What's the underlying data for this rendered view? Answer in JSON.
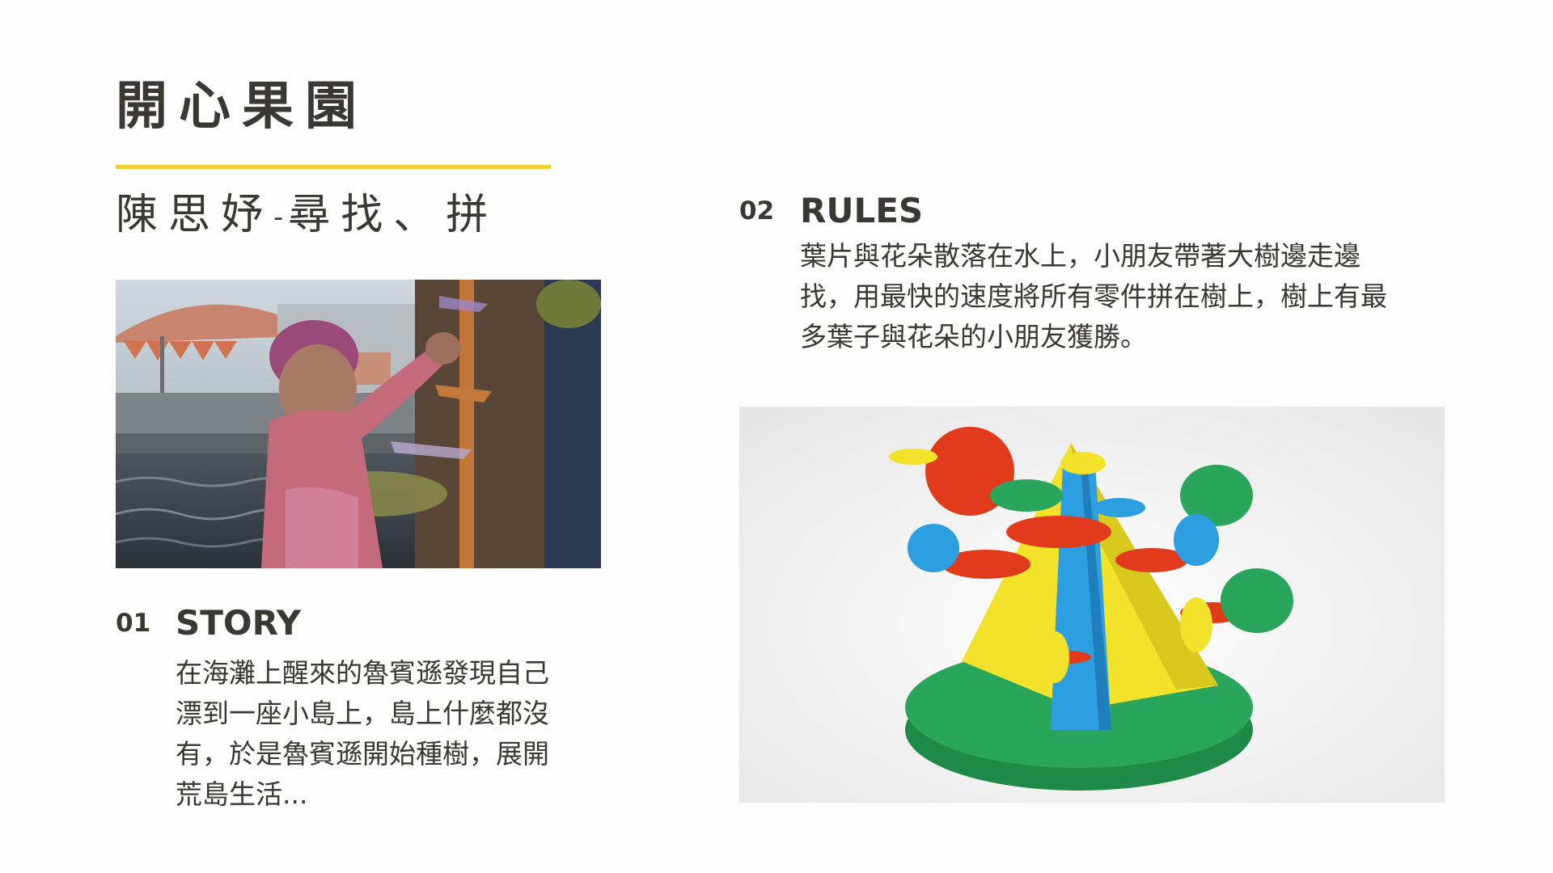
{
  "title": "開心果園",
  "subtitle": {
    "name": "陳思妤",
    "separator": "-",
    "activity": "尋找、拼"
  },
  "story": {
    "number": "01",
    "heading": "STORY",
    "lines": [
      "在海灘上醒來的魯賓遜發現自己",
      "漂到一座小島上，島上什麼都沒",
      "有，於是魯賓遜開始種樹，展開",
      "荒島生活..."
    ]
  },
  "rules": {
    "number": "02",
    "heading": "RULES",
    "lines": [
      "葉片與花朵散落在水上，小朋友帶著大樹邊走邊",
      "找，用最快的速度將所有零件拼在樹上，樹上有最",
      "多葉子與花朵的小朋友獲勝。"
    ]
  },
  "colors": {
    "accent_underline": "#f0cf2e",
    "text": "#3a3833",
    "tree_yellow": "#f2e22a",
    "tree_blue": "#2d9ee0",
    "tree_red": "#e23b1c",
    "tree_green": "#2aa55c"
  }
}
